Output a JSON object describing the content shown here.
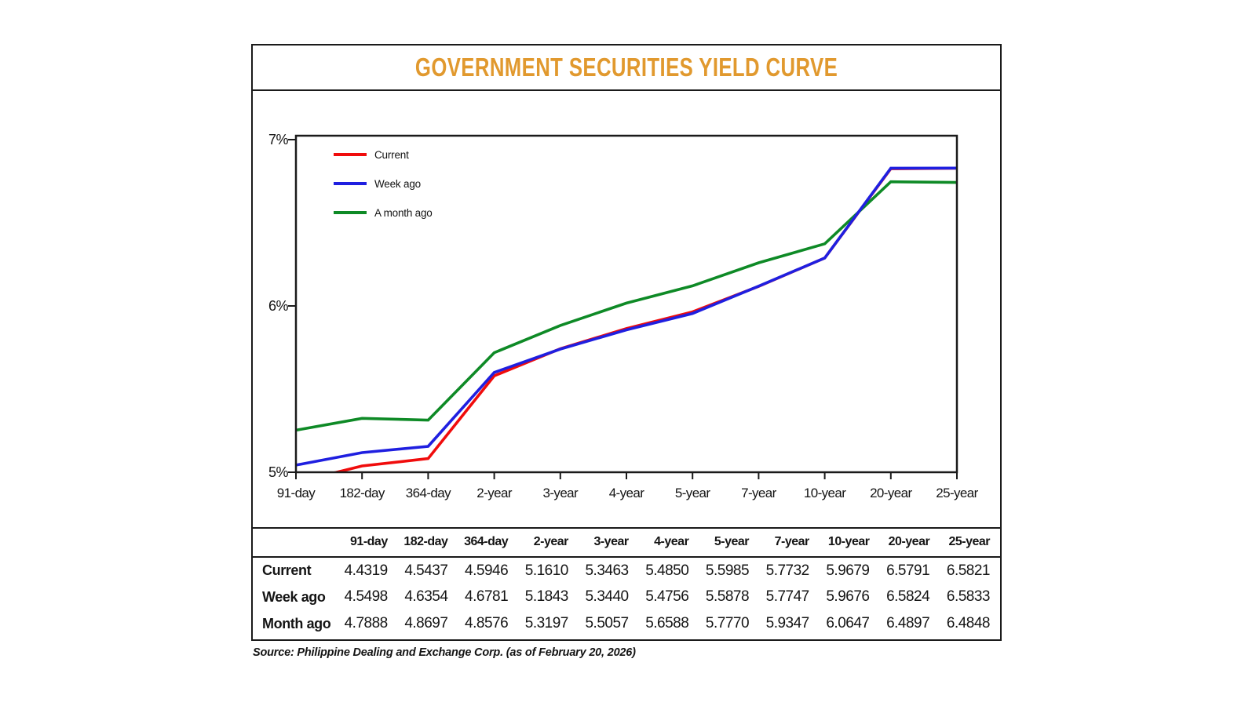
{
  "page": {
    "title": "GOVERNMENT SECURITIES YIELD CURVE",
    "source": "Source: Philippine Dealing and Exchange Corp. (as of February 20, 2026)"
  },
  "colors": {
    "title": "#E1992E",
    "axis": "#1a1a1a",
    "current": "#F00C0C",
    "week_ago": "#1F1FE0",
    "month_ago": "#0E8A26"
  },
  "chart_data": {
    "type": "line",
    "title": "GOVERNMENT SECURITIES YIELD CURVE",
    "categories": [
      "91-day",
      "182-day",
      "364-day",
      "2-year",
      "3-year",
      "4-year",
      "5-year",
      "7-year",
      "10-year",
      "20-year",
      "25-year"
    ],
    "series": [
      {
        "name": "Current",
        "color": "#F00C0C",
        "values": [
          4.4319,
          4.5437,
          4.5946,
          5.161,
          5.3463,
          5.485,
          5.5985,
          5.7732,
          5.9679,
          6.5791,
          6.5821
        ]
      },
      {
        "name": "Week ago",
        "color": "#1F1FE0",
        "values": [
          4.5498,
          4.6354,
          4.6781,
          5.1843,
          5.344,
          5.4756,
          5.5878,
          5.7747,
          5.9676,
          6.5824,
          6.5833
        ]
      },
      {
        "name": "A month ago",
        "color": "#0E8A26",
        "values": [
          4.7888,
          4.8697,
          4.8576,
          5.3197,
          5.5057,
          5.6588,
          5.777,
          5.9347,
          6.0647,
          6.4897,
          6.4848
        ]
      }
    ],
    "y_tick_labels": [
      "7%",
      "6%",
      "5%"
    ],
    "y_axis_range_shown": [
      5,
      7
    ],
    "grid": false,
    "legend_position": "top-left"
  },
  "table": {
    "columns": [
      "91-day",
      "182-day",
      "364-day",
      "2-year",
      "3-year",
      "4-year",
      "5-year",
      "7-year",
      "10-year",
      "20-year",
      "25-year"
    ],
    "rows": [
      {
        "label": "Current",
        "values": [
          "4.4319",
          "4.5437",
          "4.5946",
          "5.1610",
          "5.3463",
          "5.4850",
          "5.5985",
          "5.7732",
          "5.9679",
          "6.5791",
          "6.5821"
        ]
      },
      {
        "label": "Week ago",
        "values": [
          "4.5498",
          "4.6354",
          "4.6781",
          "5.1843",
          "5.3440",
          "5.4756",
          "5.5878",
          "5.7747",
          "5.9676",
          "6.5824",
          "6.5833"
        ]
      },
      {
        "label": "Month ago",
        "values": [
          "4.7888",
          "4.8697",
          "4.8576",
          "5.3197",
          "5.5057",
          "5.6588",
          "5.7770",
          "5.9347",
          "6.0647",
          "6.4897",
          "6.4848"
        ]
      }
    ]
  }
}
